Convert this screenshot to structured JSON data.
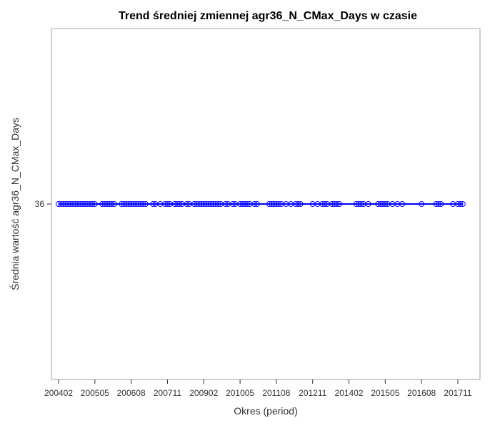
{
  "chart_data": {
    "type": "line",
    "title": "Trend średniej zmiennej agr36_N_CMax_Days w czasie",
    "xlabel": "Okres (period)",
    "ylabel": "Średnia wartość agr36_N_CMax_Days",
    "x_ticks": [
      "200402",
      "200505",
      "200608",
      "200711",
      "200902",
      "201005",
      "201108",
      "201211",
      "201402",
      "201505",
      "201608",
      "201711"
    ],
    "y_ticks": [
      36
    ],
    "xlim": [
      "200402",
      "201801"
    ],
    "ylim": [
      35,
      37
    ],
    "grid": false,
    "legend": "none",
    "series": [
      {
        "color": "#0000ff",
        "marker": "circle",
        "x": [
          "200402",
          "200403",
          "200404",
          "200405",
          "200406",
          "200407",
          "200408",
          "200409",
          "200410",
          "200411",
          "200412",
          "200501",
          "200502",
          "200503",
          "200504",
          "200505",
          "200508",
          "200509",
          "200510",
          "200511",
          "200512",
          "200601",
          "200604",
          "200605",
          "200606",
          "200607",
          "200608",
          "200609",
          "200610",
          "200611",
          "200612",
          "200701",
          "200702",
          "200705",
          "200706",
          "200708",
          "200710",
          "200711",
          "200712",
          "200802",
          "200803",
          "200804",
          "200805",
          "200807",
          "200808",
          "200810",
          "200811",
          "200812",
          "200901",
          "200902",
          "200903",
          "200904",
          "200905",
          "200906",
          "200907",
          "200908",
          "200909",
          "200911",
          "200912",
          "201002",
          "201005",
          "201006",
          "201007",
          "201008",
          "201009",
          "201011",
          "201012",
          "201003",
          "201105",
          "201106",
          "201107",
          "201108",
          "201109",
          "201110",
          "201112",
          "201202",
          "201204",
          "201205",
          "201206",
          "201211",
          "201301",
          "201303",
          "201304",
          "201305",
          "201307",
          "201308",
          "201309",
          "201310",
          "201405",
          "201406",
          "201407",
          "201408",
          "201410",
          "201502",
          "201503",
          "201504",
          "201505",
          "201506",
          "201508",
          "201510",
          "201512",
          "201608",
          "201702",
          "201703",
          "201704",
          "201709",
          "201711",
          "201712",
          "201801"
        ],
        "values": [
          36,
          36,
          36,
          36,
          36,
          36,
          36,
          36,
          36,
          36,
          36,
          36,
          36,
          36,
          36,
          36,
          36,
          36,
          36,
          36,
          36,
          36,
          36,
          36,
          36,
          36,
          36,
          36,
          36,
          36,
          36,
          36,
          36,
          36,
          36,
          36,
          36,
          36,
          36,
          36,
          36,
          36,
          36,
          36,
          36,
          36,
          36,
          36,
          36,
          36,
          36,
          36,
          36,
          36,
          36,
          36,
          36,
          36,
          36,
          36,
          36,
          36,
          36,
          36,
          36,
          36,
          36,
          36,
          36,
          36,
          36,
          36,
          36,
          36,
          36,
          36,
          36,
          36,
          36,
          36,
          36,
          36,
          36,
          36,
          36,
          36,
          36,
          36,
          36,
          36,
          36,
          36,
          36,
          36,
          36,
          36,
          36,
          36,
          36,
          36,
          36,
          36,
          36,
          36,
          36,
          36,
          36,
          36,
          36
        ]
      }
    ]
  }
}
